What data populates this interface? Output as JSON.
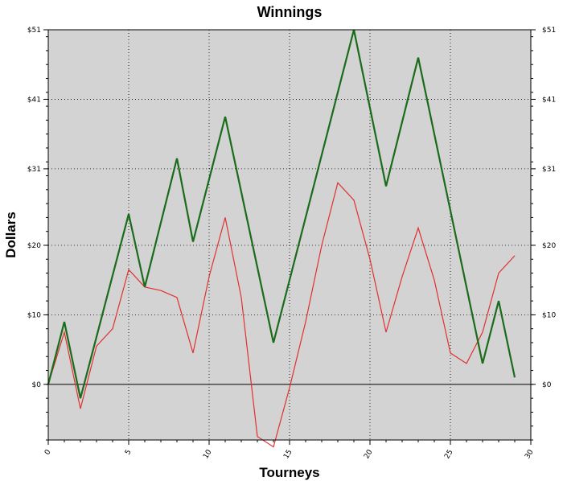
{
  "chart_data": {
    "type": "line",
    "title": "Winnings",
    "xlabel": "Tourneys",
    "ylabel": "Dollars",
    "xlim": [
      0,
      30
    ],
    "ylim": [
      -8,
      51
    ],
    "x_ticks": [
      {
        "value": 0,
        "label": "0"
      },
      {
        "value": 5,
        "label": "5"
      },
      {
        "value": 10,
        "label": "10"
      },
      {
        "value": 15,
        "label": "15"
      },
      {
        "value": 20,
        "label": "20"
      },
      {
        "value": 25,
        "label": "25"
      },
      {
        "value": 30,
        "label": "30"
      }
    ],
    "y_ticks": [
      {
        "value": 0,
        "label": "$0"
      },
      {
        "value": 10,
        "label": "$10"
      },
      {
        "value": 20,
        "label": "$20"
      },
      {
        "value": 31,
        "label": "$31"
      },
      {
        "value": 41,
        "label": "$41"
      },
      {
        "value": 51,
        "label": "$51"
      }
    ],
    "grid": true,
    "series": [
      {
        "color": "#1a6b1a",
        "x": [
          0,
          1,
          2,
          5,
          6,
          8,
          9,
          11,
          14,
          19,
          21,
          23,
          27,
          28,
          29
        ],
        "values": [
          0,
          9,
          -2,
          24.5,
          14,
          32.5,
          20.5,
          38.5,
          6,
          51,
          28.5,
          47,
          3,
          12,
          1
        ]
      },
      {
        "color": "#e03030",
        "x": [
          0,
          1,
          2,
          3,
          4,
          5,
          6,
          7,
          8,
          9,
          10,
          11,
          12,
          13,
          14,
          15,
          16,
          17,
          18,
          19,
          20,
          21,
          22,
          23,
          24,
          25,
          26,
          27,
          28,
          29
        ],
        "values": [
          0,
          7.5,
          -3.5,
          5.5,
          8,
          16.5,
          14,
          13.5,
          12.5,
          4.5,
          15.5,
          24,
          12.5,
          -7.5,
          -9,
          -0.5,
          9,
          20,
          29,
          26.5,
          18,
          7.5,
          15.5,
          22.5,
          15,
          4.5,
          3,
          7.5,
          16,
          18.5
        ]
      }
    ]
  }
}
